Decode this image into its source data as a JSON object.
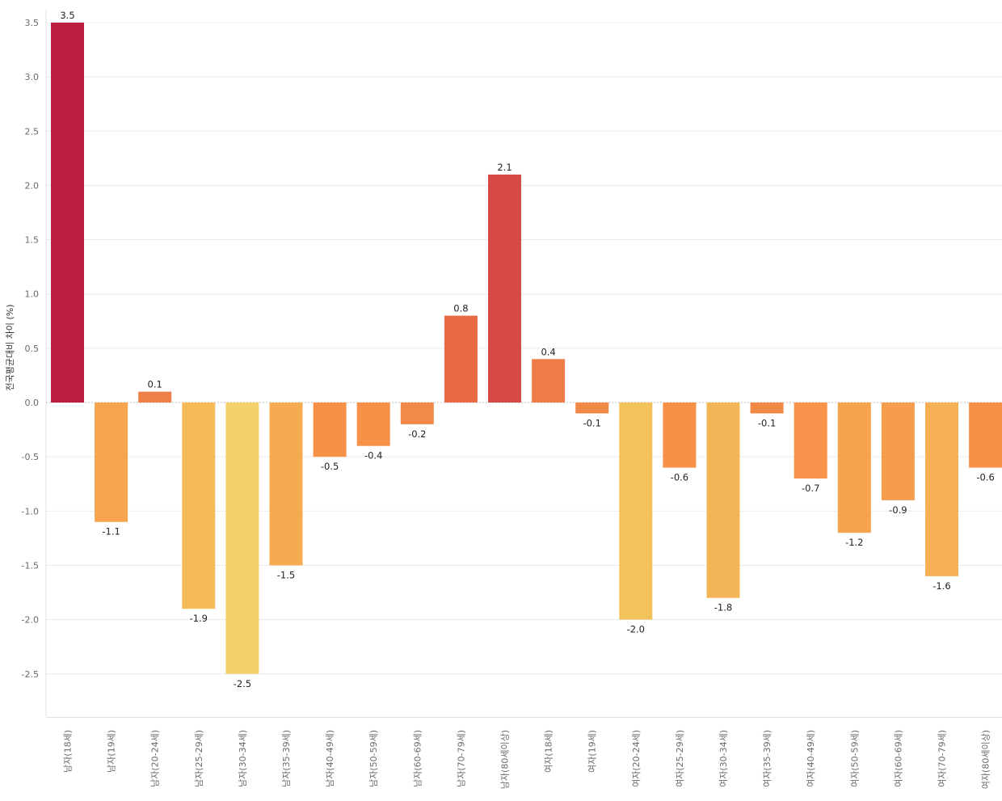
{
  "chart_data": {
    "type": "bar",
    "title": "",
    "xlabel": "",
    "ylabel": "전국평균대비 차이 (%)",
    "ylim": [
      -2.9,
      3.55
    ],
    "yticks": [
      3.5,
      3.0,
      2.5,
      2.0,
      1.5,
      1.0,
      0.5,
      0.0,
      -0.5,
      -1.0,
      -1.5,
      -2.0,
      -2.5
    ],
    "grid": true,
    "categories": [
      "남자(18세)",
      "남자(19세)",
      "남자(20-24세)",
      "남자(25-29세)",
      "남자(30-34세)",
      "남자(35-39세)",
      "남자(40-49세)",
      "남자(50-59세)",
      "남자(60-69세)",
      "남자(70-79세)",
      "남자(80세이상)",
      "여자(18세)",
      "여자(19세)",
      "여자(20-24세)",
      "여자(25-29세)",
      "여자(30-34세)",
      "여자(35-39세)",
      "여자(40-49세)",
      "여자(50-59세)",
      "여자(60-69세)",
      "여자(70-79세)",
      "여자(80세이상)"
    ],
    "values": [
      3.5,
      -1.1,
      0.1,
      -1.9,
      -2.5,
      -1.5,
      -0.5,
      -0.4,
      -0.2,
      0.8,
      2.1,
      0.4,
      -0.1,
      -2.0,
      -0.6,
      -1.8,
      -0.1,
      -0.7,
      -1.2,
      -0.9,
      -1.6,
      -0.6
    ],
    "colors": [
      "#b91d3f",
      "#f6a44e",
      "#ee8047",
      "#f4bb58",
      "#f2d06a",
      "#f5ac50",
      "#f79148",
      "#f79148",
      "#f18a48",
      "#e96a44",
      "#d54a44",
      "#ee7c48",
      "#f08846",
      "#f4c25d",
      "#f79148",
      "#f4b556",
      "#f08846",
      "#f7934a",
      "#f5a34f",
      "#f69d4d",
      "#f5b054",
      "#f79148"
    ]
  }
}
